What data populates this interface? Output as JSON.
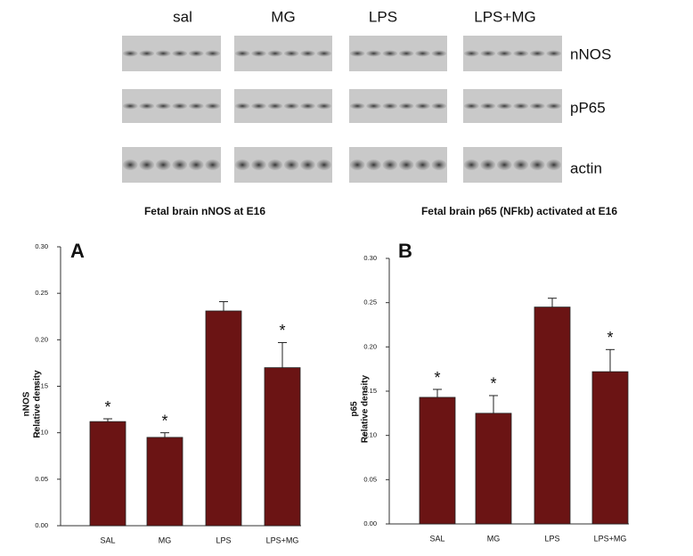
{
  "blot": {
    "columns": [
      "sal",
      "MG",
      "LPS",
      "LPS+MG"
    ],
    "rows": [
      "nNOS",
      "pP65",
      "actin"
    ]
  },
  "chart_data": [
    {
      "type": "bar",
      "panel": "A",
      "title": "Fetal brain nNOS at E16",
      "ylabel": [
        "nNOS",
        "Relative density"
      ],
      "categories": [
        "SAL",
        "MG",
        "LPS",
        "LPS+MG"
      ],
      "values": [
        0.112,
        0.095,
        0.231,
        0.17
      ],
      "errors": [
        0.003,
        0.005,
        0.01,
        0.027
      ],
      "annotations": [
        "*",
        "*",
        null,
        "*"
      ],
      "color": "#6b1414",
      "ylim": [
        0,
        0.3
      ],
      "yticks": [
        {
          "value": 0,
          "label": "0.00"
        },
        {
          "value": 0.05,
          "label": "0.05"
        },
        {
          "value": 0.1,
          "label": "0.10"
        },
        {
          "value": 0.15,
          "label": "0.15"
        },
        {
          "value": 0.2,
          "label": "0.20"
        },
        {
          "value": 0.25,
          "label": "0.25"
        },
        {
          "value": 0.3,
          "label": "0.30"
        }
      ]
    },
    {
      "type": "bar",
      "panel": "B",
      "title": "Fetal brain p65 (NFkb) activated at E16",
      "ylabel": [
        "p65",
        "Relative density"
      ],
      "categories": [
        "SAL",
        "MG",
        "LPS",
        "LPS+MG"
      ],
      "values": [
        0.143,
        0.125,
        0.245,
        0.172
      ],
      "errors": [
        0.009,
        0.02,
        0.01,
        0.025
      ],
      "annotations": [
        "*",
        "*",
        null,
        "*"
      ],
      "color": "#6b1414",
      "ylim": [
        0,
        0.3
      ],
      "yticks": [
        {
          "value": 0,
          "label": "0.00"
        },
        {
          "value": 0.05,
          "label": "0.05"
        },
        {
          "value": 0.1,
          "label": "0.10"
        },
        {
          "value": 0.15,
          "label": "0.15"
        },
        {
          "value": 0.2,
          "label": "0.20"
        },
        {
          "value": 0.25,
          "label": "0.25"
        },
        {
          "value": 0.3,
          "label": "0.30"
        }
      ]
    }
  ]
}
